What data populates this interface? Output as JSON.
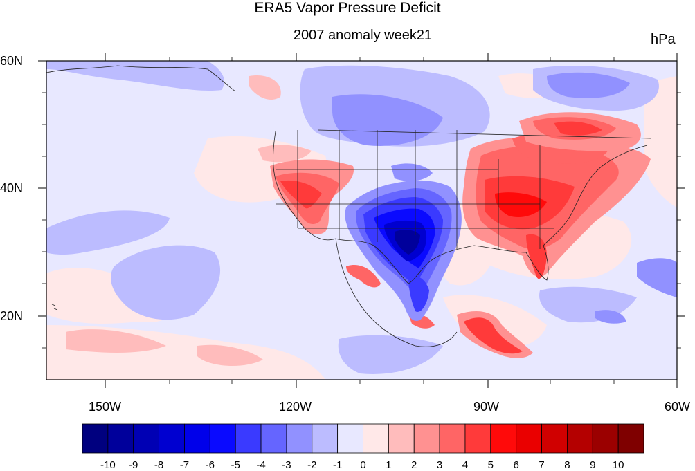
{
  "title": "ERA5 Vapor Pressure Deficit",
  "subtitle": "2007 anomaly week21",
  "units": "hPa",
  "map": {
    "lon_range": [
      -160,
      -60
    ],
    "lat_range": [
      10,
      60
    ],
    "lat_labels": [
      "60N",
      "40N",
      "20N"
    ],
    "lon_labels": [
      "150W",
      "120W",
      "90W",
      "60W"
    ]
  },
  "colorbar": {
    "labels": [
      "-10",
      "-9",
      "-8",
      "-7",
      "-6",
      "-5",
      "-4",
      "-3",
      "-2",
      "-1",
      "0",
      "1",
      "2",
      "3",
      "4",
      "5",
      "6",
      "7",
      "8",
      "9",
      "10"
    ],
    "colors": [
      "#00007f",
      "#00009b",
      "#0000b4",
      "#0000d0",
      "#0000ea",
      "#0a0aff",
      "#3a3aff",
      "#6565ff",
      "#9191ff",
      "#bcbcff",
      "#e8e8ff",
      "#ffe8e8",
      "#ffbcbc",
      "#ff9191",
      "#ff6565",
      "#ff3a3a",
      "#ff0a0a",
      "#ea0000",
      "#d00000",
      "#b40000",
      "#9b0000",
      "#7f0000"
    ]
  }
}
